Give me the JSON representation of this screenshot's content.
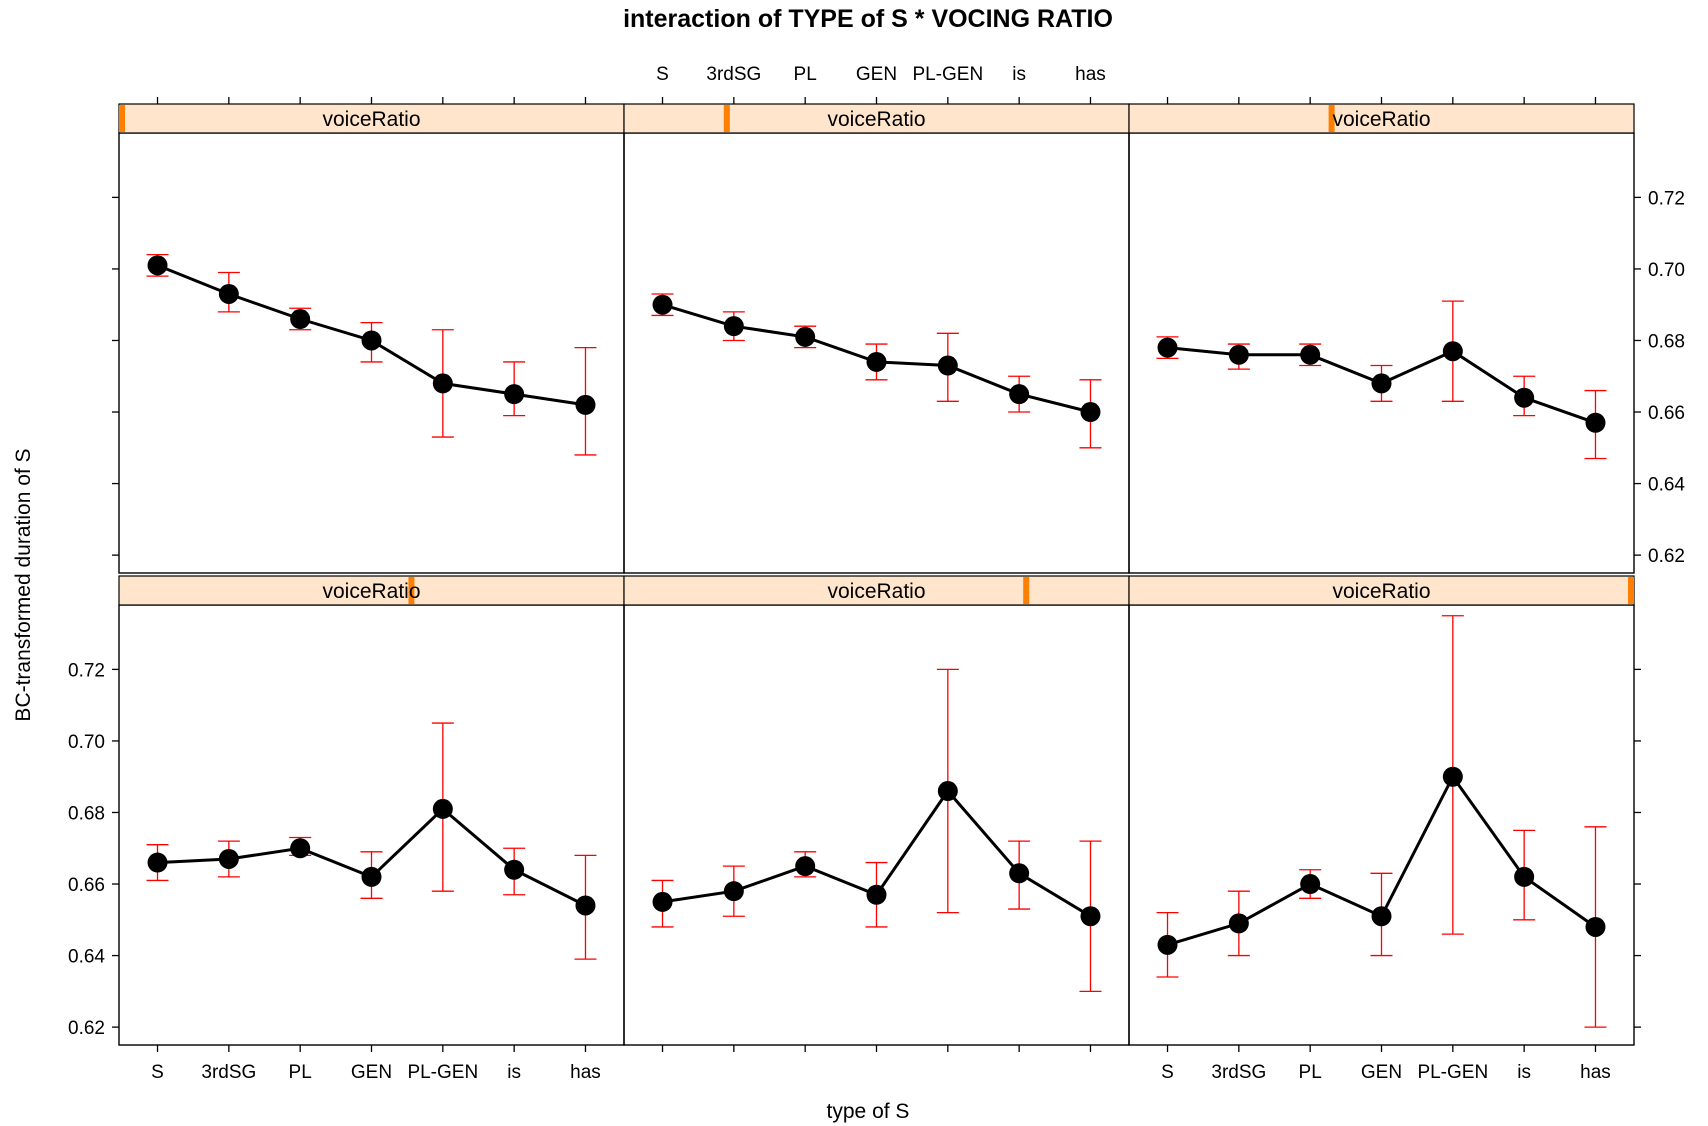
{
  "chart_data": {
    "type": "line",
    "title": "interaction of TYPE of S * VOCING RATIO",
    "xlabel": "type of S",
    "ylabel": "BC-transformed duration of S",
    "categories": [
      "S",
      "3rdSG",
      "PL",
      "GEN",
      "PL-GEN",
      "is",
      "has"
    ],
    "ylim": [
      0.615,
      0.738
    ],
    "yticks": [
      "0.62",
      "0.64",
      "0.66",
      "0.68",
      "0.70",
      "0.72"
    ],
    "grid": false,
    "layout": "3 columns x 2 rows (lattice), panels ordered bottom-left to top-right",
    "strip_label": "voiceRatio",
    "colors": {
      "line": "#000000",
      "point": "#000000",
      "error_bar": "#ff0000",
      "strip_fill": "#ffe5cc",
      "strip_indicator": "#ff7f00"
    },
    "panels": [
      {
        "strip": "voiceRatio",
        "voiceRatio_level": 0.58,
        "values": [
          0.666,
          0.667,
          0.67,
          0.662,
          0.681,
          0.664,
          0.654
        ],
        "lower": [
          0.661,
          0.662,
          0.668,
          0.656,
          0.658,
          0.657,
          0.639
        ],
        "upper": [
          0.671,
          0.672,
          0.673,
          0.669,
          0.705,
          0.67,
          0.668
        ]
      },
      {
        "strip": "voiceRatio",
        "voiceRatio_level": 0.8,
        "values": [
          0.655,
          0.658,
          0.665,
          0.657,
          0.686,
          0.663,
          0.651
        ],
        "lower": [
          0.648,
          0.651,
          0.662,
          0.648,
          0.652,
          0.653,
          0.63
        ],
        "upper": [
          0.661,
          0.665,
          0.669,
          0.666,
          0.72,
          0.672,
          0.672
        ]
      },
      {
        "strip": "voiceRatio",
        "voiceRatio_level": 1.0,
        "values": [
          0.643,
          0.649,
          0.66,
          0.651,
          0.69,
          0.662,
          0.648
        ],
        "lower": [
          0.634,
          0.64,
          0.656,
          0.64,
          0.646,
          0.65,
          0.62
        ],
        "upper": [
          0.652,
          0.658,
          0.664,
          0.663,
          0.735,
          0.675,
          0.676
        ]
      },
      {
        "strip": "voiceRatio",
        "voiceRatio_level": 0.0,
        "values": [
          0.701,
          0.693,
          0.686,
          0.68,
          0.668,
          0.665,
          0.662
        ],
        "lower": [
          0.698,
          0.688,
          0.683,
          0.674,
          0.653,
          0.659,
          0.648
        ],
        "upper": [
          0.704,
          0.699,
          0.689,
          0.685,
          0.683,
          0.674,
          0.678
        ]
      },
      {
        "strip": "voiceRatio",
        "voiceRatio_level": 0.2,
        "values": [
          0.69,
          0.684,
          0.681,
          0.674,
          0.673,
          0.665,
          0.66
        ],
        "lower": [
          0.687,
          0.68,
          0.678,
          0.669,
          0.663,
          0.66,
          0.65
        ],
        "upper": [
          0.693,
          0.688,
          0.684,
          0.679,
          0.682,
          0.67,
          0.669
        ]
      },
      {
        "strip": "voiceRatio",
        "voiceRatio_level": 0.4,
        "values": [
          0.678,
          0.676,
          0.676,
          0.668,
          0.677,
          0.664,
          0.657
        ],
        "lower": [
          0.675,
          0.672,
          0.673,
          0.663,
          0.663,
          0.659,
          0.647
        ],
        "upper": [
          0.681,
          0.679,
          0.679,
          0.673,
          0.691,
          0.67,
          0.666
        ]
      }
    ]
  }
}
